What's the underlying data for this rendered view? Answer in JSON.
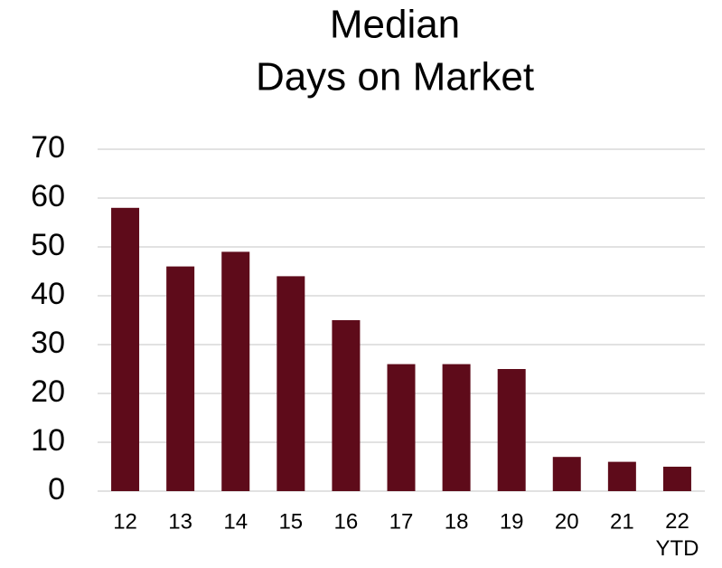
{
  "chart_data": {
    "type": "bar",
    "title": [
      "Median",
      "Days on Market"
    ],
    "categories": [
      "12",
      "13",
      "14",
      "15",
      "16",
      "17",
      "18",
      "19",
      "20",
      "21",
      "22\nYTD"
    ],
    "values": [
      58,
      46,
      49,
      44,
      35,
      26,
      26,
      25,
      7,
      6,
      5
    ],
    "color": "#5e0b1a",
    "ylim": [
      0,
      70
    ],
    "yticks": [
      0,
      10,
      20,
      30,
      40,
      50,
      60,
      70
    ],
    "grid": true
  }
}
